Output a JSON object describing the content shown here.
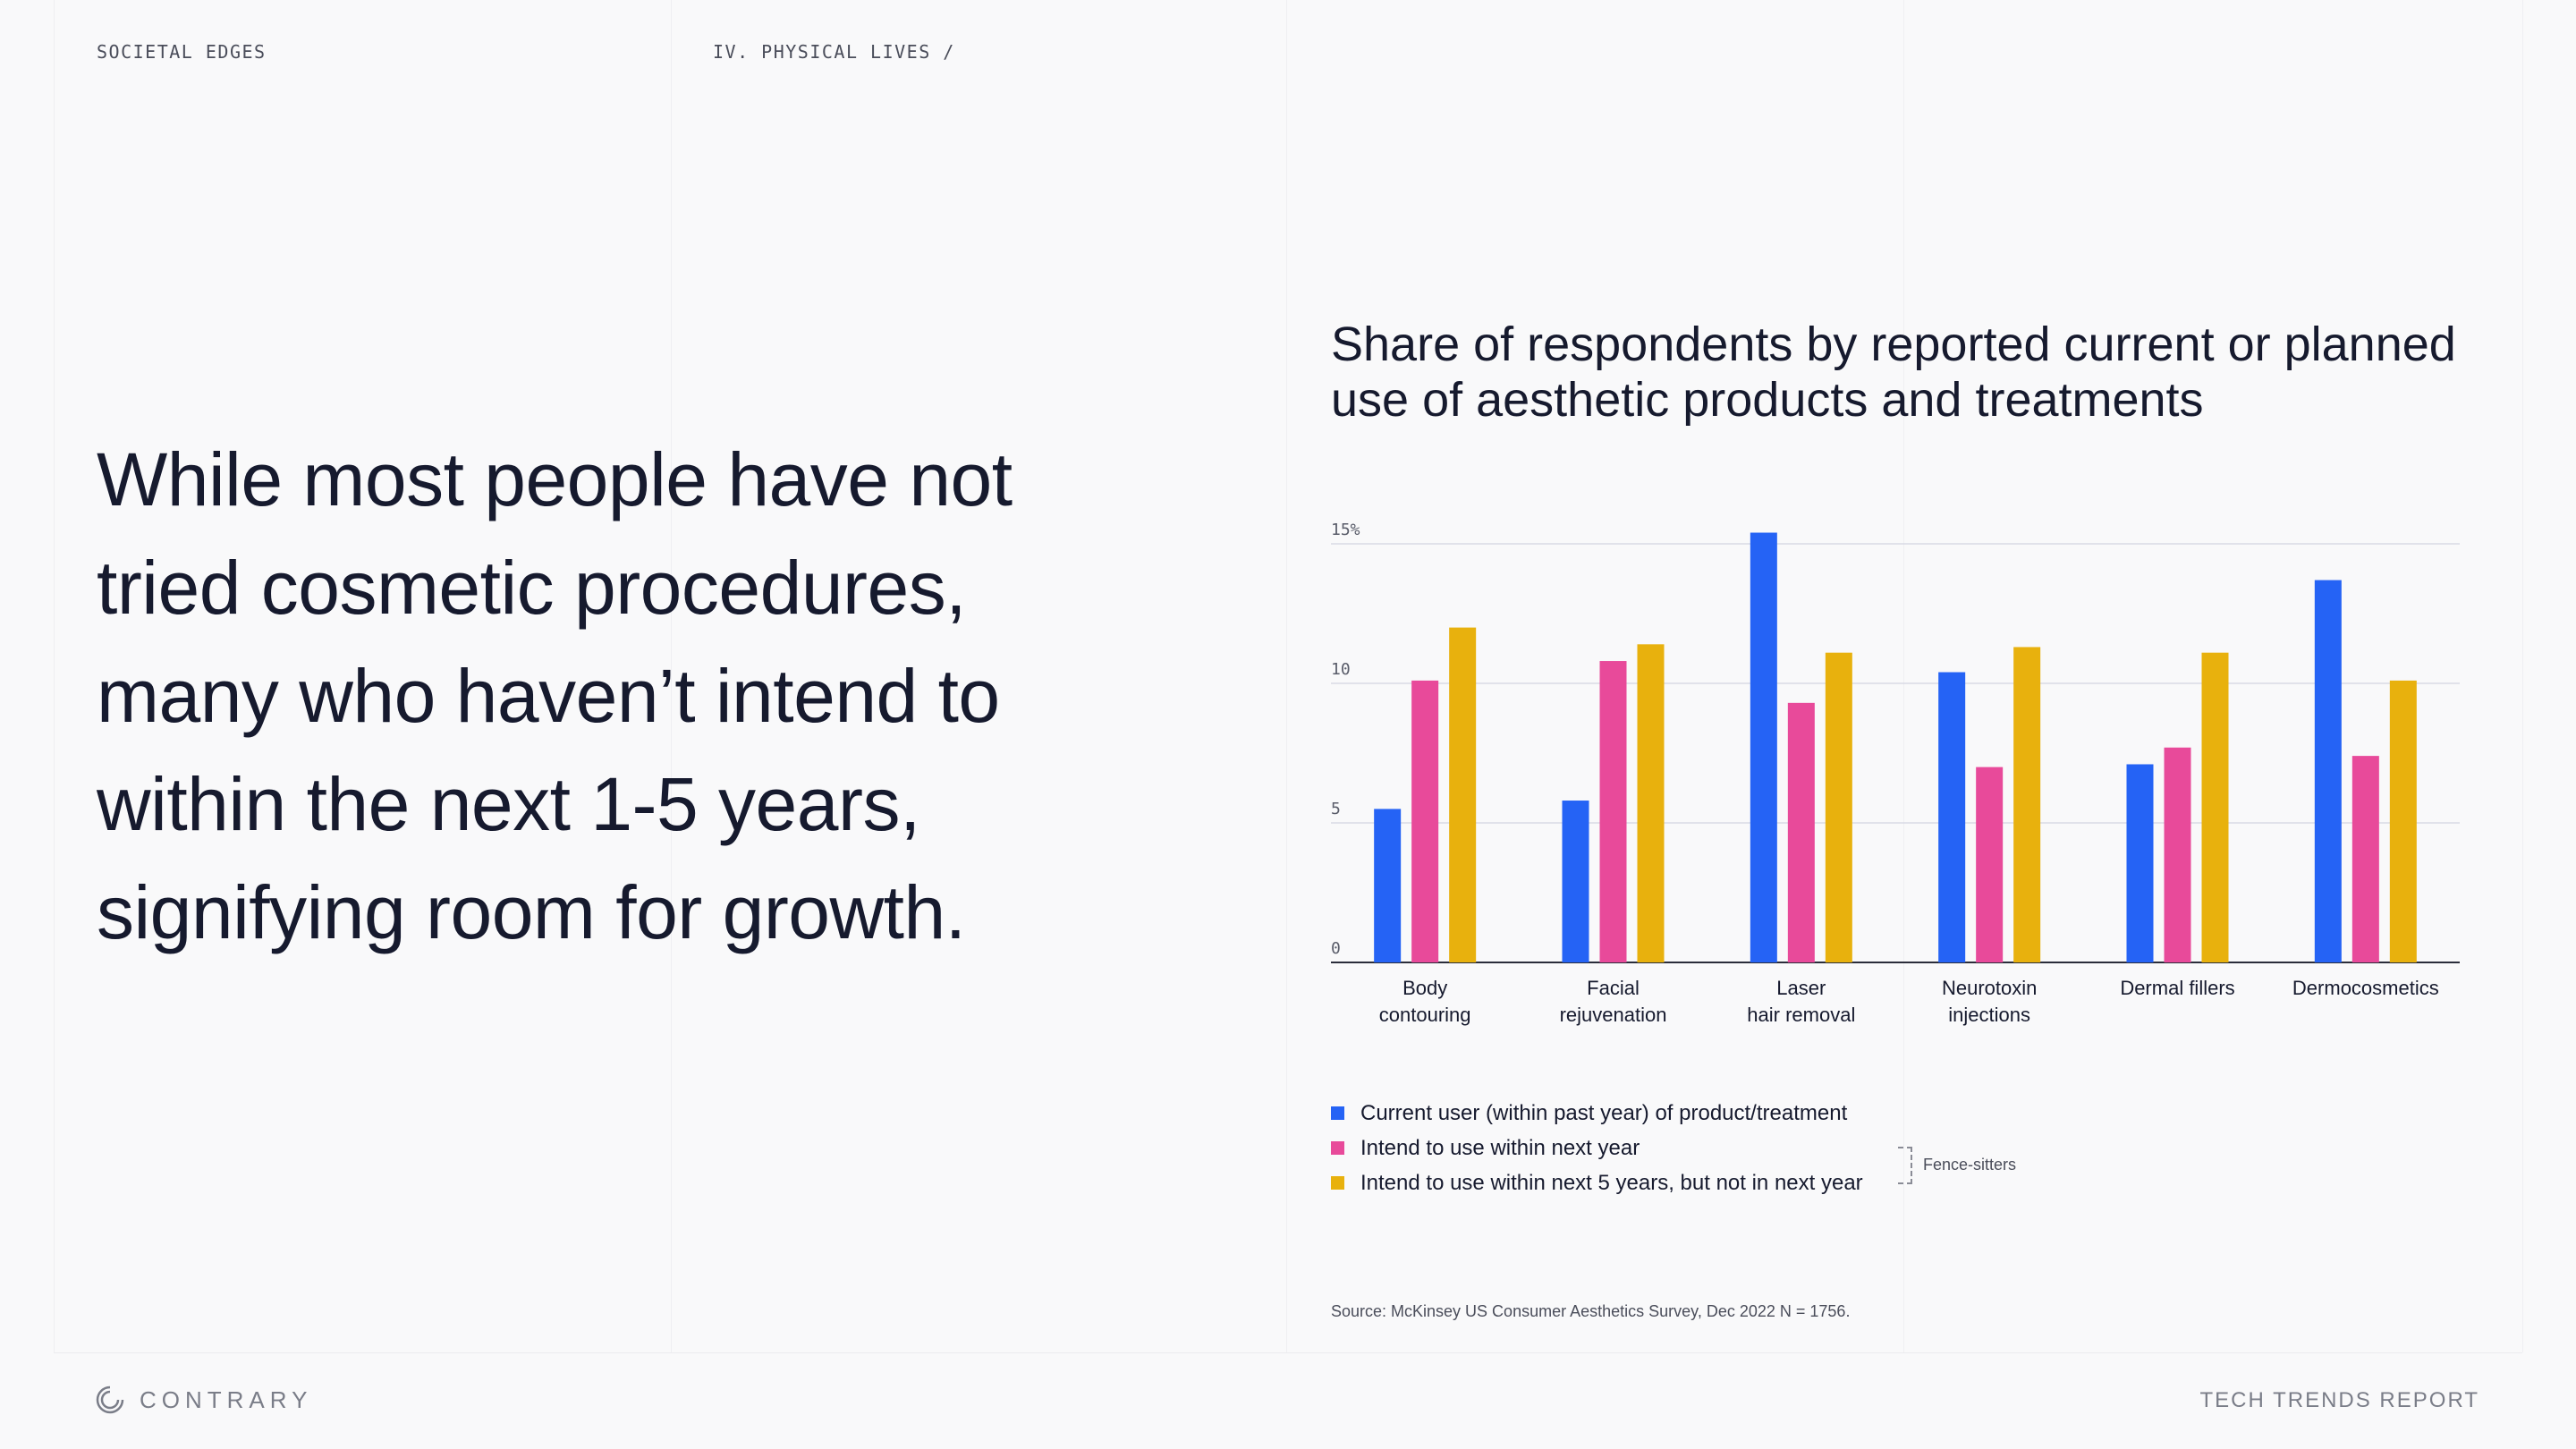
{
  "header": {
    "section": "SOCIETAL EDGES",
    "chapter": "IV. PHYSICAL LIVES /"
  },
  "headline": "While most people have not tried cosmetic procedures, many who haven’t intend to within the next 1-5 years, signifying room for growth.",
  "chart_title": "Share of respondents by reported current or planned use of aesthetic products and treatments",
  "chart_data": {
    "type": "bar",
    "categories": [
      [
        "Body",
        "contouring"
      ],
      [
        "Facial",
        "rejuvenation"
      ],
      [
        "Laser",
        "hair removal"
      ],
      [
        "Neurotoxin",
        "injections"
      ],
      [
        "Dermal fillers"
      ],
      [
        "Dermocosmetics"
      ]
    ],
    "series": [
      {
        "name": "Current user (within past year) of product/treatment",
        "color": "#2563f5",
        "values": [
          5.5,
          5.8,
          15.4,
          10.4,
          7.1,
          13.7
        ]
      },
      {
        "name": "Intend to use within next year",
        "color": "#e84a9a",
        "values": [
          10.1,
          10.8,
          9.3,
          7.0,
          7.7,
          7.4
        ]
      },
      {
        "name": "Intend to use within next 5 years, but not in next year",
        "color": "#e8b10d",
        "values": [
          12.0,
          11.4,
          11.1,
          11.3,
          11.1,
          10.1
        ]
      }
    ],
    "y_ticks": [
      "0",
      "5",
      "10",
      "15%"
    ],
    "ylim": [
      0,
      15
    ],
    "grid": true,
    "legend_position": "bottom"
  },
  "legend_note": "Fence-sitters",
  "source": "Source: McKinsey US Consumer Aesthetics Survey, Dec 2022 N = 1756.",
  "footer": {
    "logo": "CONTRARY",
    "report": "TECH TRENDS REPORT"
  }
}
